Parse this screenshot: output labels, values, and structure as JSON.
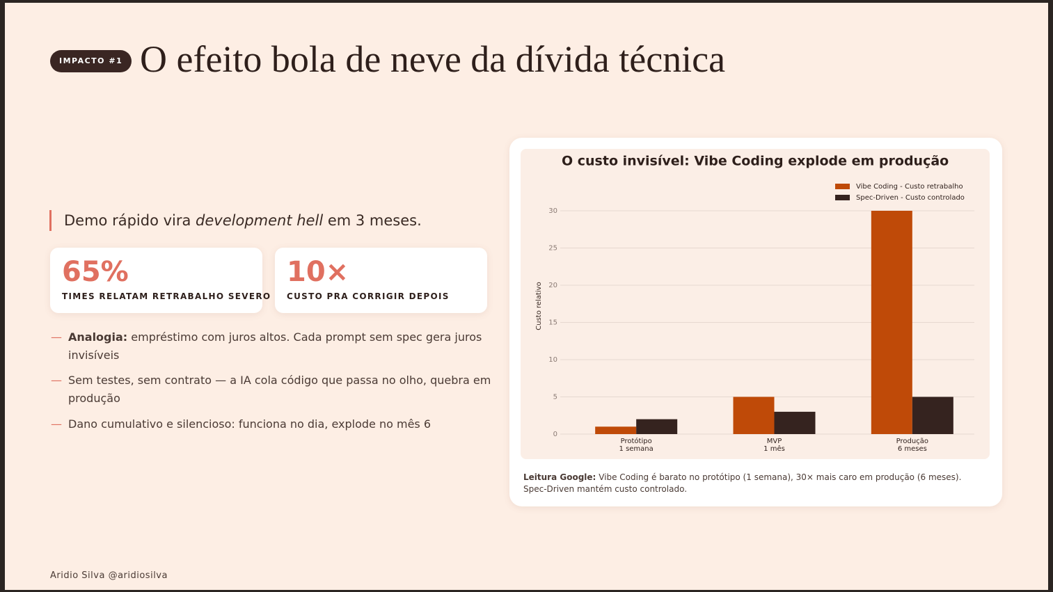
{
  "header": {
    "badge": "IMPACTO #1",
    "title": "O efeito bola de neve da dívida técnica"
  },
  "lead": [
    "Demo rápido vira",
    "development hell",
    "em 3 meses."
  ],
  "stats": [
    {
      "value": "65%",
      "label": "TIMES RELATAM RETRABALHO SEVERO"
    },
    {
      "value": "10×",
      "label": "CUSTO PRA CORRIGIR DEPOIS"
    }
  ],
  "bullets": [
    {
      "bold": "Analogia:",
      "text": "empréstimo com juros altos. Cada prompt sem spec gera juros invisíveis"
    },
    {
      "text": "Sem testes, sem contrato — a IA cola código que passa no olho, quebra em produção"
    },
    {
      "text": "Dano cumulativo e silencioso: funciona no dia, explode no mês 6"
    }
  ],
  "chart_data": {
    "type": "bar",
    "title": "O custo invisível: Vibe Coding explode em produção",
    "y_label": "Custo relativo",
    "categories": [
      [
        "Protótipo",
        "1 semana"
      ],
      [
        "MVP",
        "1 mês"
      ],
      [
        "Produção",
        "6 meses"
      ]
    ],
    "series": [
      {
        "name": "Vibe Coding - Custo retrabalho",
        "color": "#bf4a08",
        "values": [
          1,
          5,
          30
        ]
      },
      {
        "name": "Spec-Driven - Custo controlado",
        "color": "#35231f",
        "values": [
          2,
          3,
          5
        ]
      }
    ],
    "ylim": [
      0,
      30
    ],
    "yticks": [
      0,
      5,
      10,
      15,
      20,
      25,
      30
    ],
    "grid": true,
    "legend": "top-right"
  },
  "caption": {
    "bold": "Leitura Google:",
    "text": "Vibe Coding é barato no protótipo (1 semana), 30× mais caro em produção (6 meses). Spec-Driven mantém custo controlado."
  },
  "footer": "Aridio Silva @aridiosilva"
}
